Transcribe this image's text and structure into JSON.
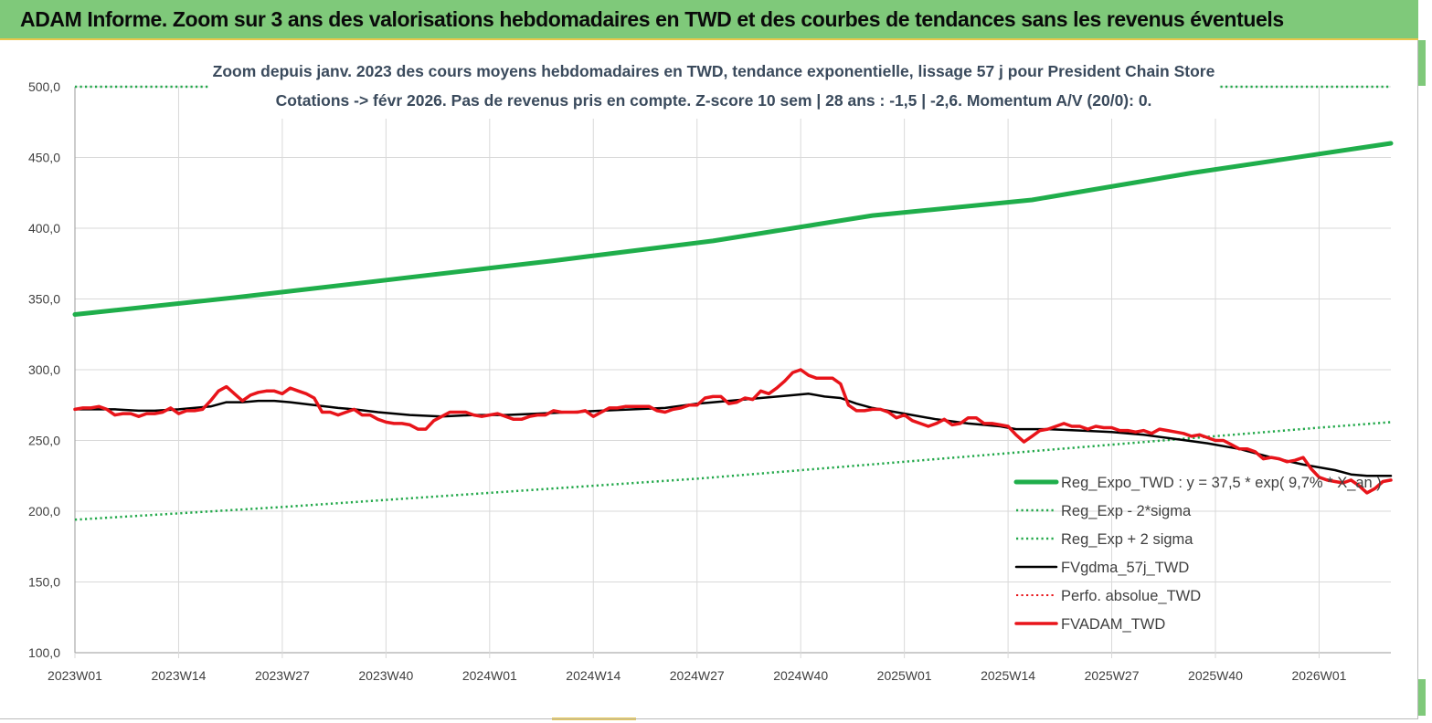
{
  "header": {
    "title": "ADAM Informe. Zoom sur 3 ans des valorisations hebdomadaires en TWD et des courbes de tendances sans les revenus éventuels"
  },
  "colors": {
    "header_bg": "#7fc97a",
    "accent": "#e8c64a",
    "trend_green": "#1fae4b",
    "band_green": "#22a84a",
    "black": "#000000",
    "red": "#e8141a"
  },
  "chart_data": {
    "type": "line",
    "subtitle_line1": "Zoom depuis janv. 2023 des cours moyens hebdomadaires en TWD, tendance exponentielle, lissage 57 j pour President Chain Store",
    "subtitle_line2": "Cotations -> févr 2026.  Pas de revenus pris en compte. Z-score 10 sem | 28 ans : -1,5 | -2,6. Momentum A/V (20/0): 0.",
    "ylim": [
      100,
      500
    ],
    "yticks": [
      "100,0",
      "150,0",
      "200,0",
      "250,0",
      "300,0",
      "350,0",
      "400,0",
      "450,0",
      "500,0"
    ],
    "xlim": [
      0,
      165
    ],
    "xticks": [
      {
        "i": 0,
        "label": "2023W01"
      },
      {
        "i": 13,
        "label": "2023W14"
      },
      {
        "i": 26,
        "label": "2023W27"
      },
      {
        "i": 39,
        "label": "2023W40"
      },
      {
        "i": 52,
        "label": "2024W01"
      },
      {
        "i": 65,
        "label": "2024W14"
      },
      {
        "i": 78,
        "label": "2024W27"
      },
      {
        "i": 91,
        "label": "2024W40"
      },
      {
        "i": 104,
        "label": "2025W01"
      },
      {
        "i": 117,
        "label": "2025W14"
      },
      {
        "i": 130,
        "label": "2025W27"
      },
      {
        "i": 143,
        "label": "2025W40"
      },
      {
        "i": 156,
        "label": "2026W01"
      }
    ],
    "grid": true,
    "legend_position": "bottom-right",
    "series": [
      {
        "name": "Reg_Expo_TWD : y = 37,5 * exp( 9,7% * X_an )",
        "style": "solid",
        "color": "#1fae4b",
        "width": 5,
        "points": [
          [
            0,
            339
          ],
          [
            20,
            351
          ],
          [
            40,
            364
          ],
          [
            60,
            377
          ],
          [
            80,
            391
          ],
          [
            100,
            409
          ],
          [
            120,
            420
          ],
          [
            140,
            439
          ],
          [
            165,
            460
          ]
        ]
      },
      {
        "name": "Reg_Exp - 2*sigma",
        "style": "dotted",
        "color": "#22a84a",
        "width": 2.5,
        "points": [
          [
            0,
            194
          ],
          [
            26,
            203
          ],
          [
            52,
            213
          ],
          [
            78,
            223
          ],
          [
            104,
            235
          ],
          [
            130,
            247
          ],
          [
            156,
            259
          ],
          [
            165,
            263
          ]
        ]
      },
      {
        "name": "Reg_Exp + 2 sigma",
        "style": "dotted",
        "color": "#22a84a",
        "width": 2.5,
        "segments": [
          [
            [
              0,
              500
            ],
            [
              17,
              500
            ]
          ],
          [
            [
              143,
              500
            ],
            [
              165,
              500
            ]
          ]
        ]
      },
      {
        "name": "FVgdma_57j_TWD",
        "style": "solid",
        "color": "#000000",
        "width": 2.5,
        "points": [
          [
            0,
            272
          ],
          [
            5,
            272
          ],
          [
            8,
            271
          ],
          [
            10,
            271
          ],
          [
            13,
            272
          ],
          [
            17,
            274
          ],
          [
            19,
            277
          ],
          [
            21,
            277
          ],
          [
            23,
            278
          ],
          [
            25,
            278
          ],
          [
            27,
            277
          ],
          [
            30,
            275
          ],
          [
            33,
            273
          ],
          [
            35,
            272
          ],
          [
            38,
            270
          ],
          [
            42,
            268
          ],
          [
            46,
            267
          ],
          [
            50,
            268
          ],
          [
            54,
            268
          ],
          [
            58,
            269
          ],
          [
            62,
            270
          ],
          [
            66,
            271
          ],
          [
            70,
            272
          ],
          [
            74,
            273
          ],
          [
            78,
            276
          ],
          [
            82,
            278
          ],
          [
            86,
            280
          ],
          [
            90,
            282
          ],
          [
            92,
            283
          ],
          [
            94,
            281
          ],
          [
            96,
            280
          ],
          [
            98,
            276
          ],
          [
            100,
            273
          ],
          [
            104,
            269
          ],
          [
            108,
            265
          ],
          [
            112,
            262
          ],
          [
            116,
            260
          ],
          [
            118,
            258
          ],
          [
            122,
            258
          ],
          [
            126,
            257
          ],
          [
            130,
            256
          ],
          [
            134,
            254
          ],
          [
            138,
            251
          ],
          [
            142,
            248
          ],
          [
            146,
            244
          ],
          [
            150,
            238
          ],
          [
            154,
            233
          ],
          [
            158,
            229
          ],
          [
            160,
            226
          ],
          [
            162,
            225
          ],
          [
            165,
            225
          ]
        ]
      },
      {
        "name": "Perfo. absolue_TWD",
        "style": "dotted",
        "color": "#e8141a",
        "width": 2,
        "points": []
      },
      {
        "name": "FVADAM_TWD",
        "style": "solid",
        "color": "#e8141a",
        "width": 3.5,
        "points": [
          [
            0,
            272
          ],
          [
            1,
            273
          ],
          [
            2,
            273
          ],
          [
            3,
            274
          ],
          [
            4,
            272
          ],
          [
            5,
            268
          ],
          [
            6,
            269
          ],
          [
            7,
            269
          ],
          [
            8,
            267
          ],
          [
            9,
            269
          ],
          [
            10,
            269
          ],
          [
            11,
            270
          ],
          [
            12,
            273
          ],
          [
            13,
            269
          ],
          [
            14,
            271
          ],
          [
            15,
            271
          ],
          [
            16,
            272
          ],
          [
            17,
            278
          ],
          [
            18,
            285
          ],
          [
            19,
            288
          ],
          [
            20,
            283
          ],
          [
            21,
            278
          ],
          [
            22,
            282
          ],
          [
            23,
            284
          ],
          [
            24,
            285
          ],
          [
            25,
            285
          ],
          [
            26,
            283
          ],
          [
            27,
            287
          ],
          [
            28,
            285
          ],
          [
            29,
            283
          ],
          [
            30,
            280
          ],
          [
            31,
            270
          ],
          [
            32,
            270
          ],
          [
            33,
            268
          ],
          [
            34,
            270
          ],
          [
            35,
            272
          ],
          [
            36,
            268
          ],
          [
            37,
            268
          ],
          [
            38,
            265
          ],
          [
            39,
            263
          ],
          [
            40,
            262
          ],
          [
            41,
            262
          ],
          [
            42,
            261
          ],
          [
            43,
            258
          ],
          [
            44,
            258
          ],
          [
            45,
            264
          ],
          [
            46,
            267
          ],
          [
            47,
            270
          ],
          [
            48,
            270
          ],
          [
            49,
            270
          ],
          [
            50,
            268
          ],
          [
            51,
            267
          ],
          [
            52,
            268
          ],
          [
            53,
            269
          ],
          [
            54,
            267
          ],
          [
            55,
            265
          ],
          [
            56,
            265
          ],
          [
            57,
            267
          ],
          [
            58,
            268
          ],
          [
            59,
            268
          ],
          [
            60,
            271
          ],
          [
            61,
            270
          ],
          [
            62,
            270
          ],
          [
            63,
            270
          ],
          [
            64,
            271
          ],
          [
            65,
            267
          ],
          [
            66,
            270
          ],
          [
            67,
            273
          ],
          [
            68,
            273
          ],
          [
            69,
            274
          ],
          [
            70,
            274
          ],
          [
            71,
            274
          ],
          [
            72,
            274
          ],
          [
            73,
            271
          ],
          [
            74,
            270
          ],
          [
            75,
            272
          ],
          [
            76,
            273
          ],
          [
            77,
            275
          ],
          [
            78,
            275
          ],
          [
            79,
            280
          ],
          [
            80,
            281
          ],
          [
            81,
            281
          ],
          [
            82,
            276
          ],
          [
            83,
            277
          ],
          [
            84,
            280
          ],
          [
            85,
            279
          ],
          [
            86,
            285
          ],
          [
            87,
            283
          ],
          [
            88,
            287
          ],
          [
            89,
            292
          ],
          [
            90,
            298
          ],
          [
            91,
            300
          ],
          [
            92,
            296
          ],
          [
            93,
            294
          ],
          [
            94,
            294
          ],
          [
            95,
            294
          ],
          [
            96,
            290
          ],
          [
            97,
            275
          ],
          [
            98,
            271
          ],
          [
            99,
            271
          ],
          [
            100,
            272
          ],
          [
            101,
            272
          ],
          [
            102,
            270
          ],
          [
            103,
            266
          ],
          [
            104,
            268
          ],
          [
            105,
            264
          ],
          [
            106,
            262
          ],
          [
            107,
            260
          ],
          [
            108,
            262
          ],
          [
            109,
            265
          ],
          [
            110,
            261
          ],
          [
            111,
            262
          ],
          [
            112,
            266
          ],
          [
            113,
            266
          ],
          [
            114,
            262
          ],
          [
            115,
            262
          ],
          [
            116,
            261
          ],
          [
            117,
            260
          ],
          [
            118,
            254
          ],
          [
            119,
            249
          ],
          [
            120,
            253
          ],
          [
            121,
            257
          ],
          [
            122,
            258
          ],
          [
            123,
            260
          ],
          [
            124,
            262
          ],
          [
            125,
            260
          ],
          [
            126,
            260
          ],
          [
            127,
            258
          ],
          [
            128,
            260
          ],
          [
            129,
            259
          ],
          [
            130,
            259
          ],
          [
            131,
            257
          ],
          [
            132,
            257
          ],
          [
            133,
            256
          ],
          [
            134,
            257
          ],
          [
            135,
            255
          ],
          [
            136,
            258
          ],
          [
            137,
            257
          ],
          [
            138,
            256
          ],
          [
            139,
            255
          ],
          [
            140,
            253
          ],
          [
            141,
            254
          ],
          [
            142,
            252
          ],
          [
            143,
            250
          ],
          [
            144,
            250
          ],
          [
            145,
            247
          ],
          [
            146,
            244
          ],
          [
            147,
            244
          ],
          [
            148,
            242
          ],
          [
            149,
            237
          ],
          [
            150,
            238
          ],
          [
            151,
            237
          ],
          [
            152,
            235
          ],
          [
            153,
            236
          ],
          [
            154,
            238
          ],
          [
            155,
            230
          ],
          [
            156,
            224
          ],
          [
            157,
            222
          ],
          [
            158,
            221
          ],
          [
            159,
            220
          ],
          [
            160,
            222
          ],
          [
            161,
            218
          ],
          [
            162,
            213
          ],
          [
            163,
            216
          ],
          [
            164,
            221
          ],
          [
            165,
            222
          ]
        ]
      }
    ]
  }
}
